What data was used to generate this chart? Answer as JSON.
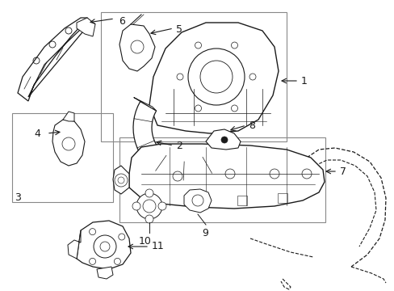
{
  "bg_color": "#ffffff",
  "lc": "#1a1a1a",
  "gc": "#888888",
  "figsize": [
    4.89,
    3.6
  ],
  "dpi": 100,
  "xlim": [
    0,
    489
  ],
  "ylim": [
    0,
    360
  ]
}
